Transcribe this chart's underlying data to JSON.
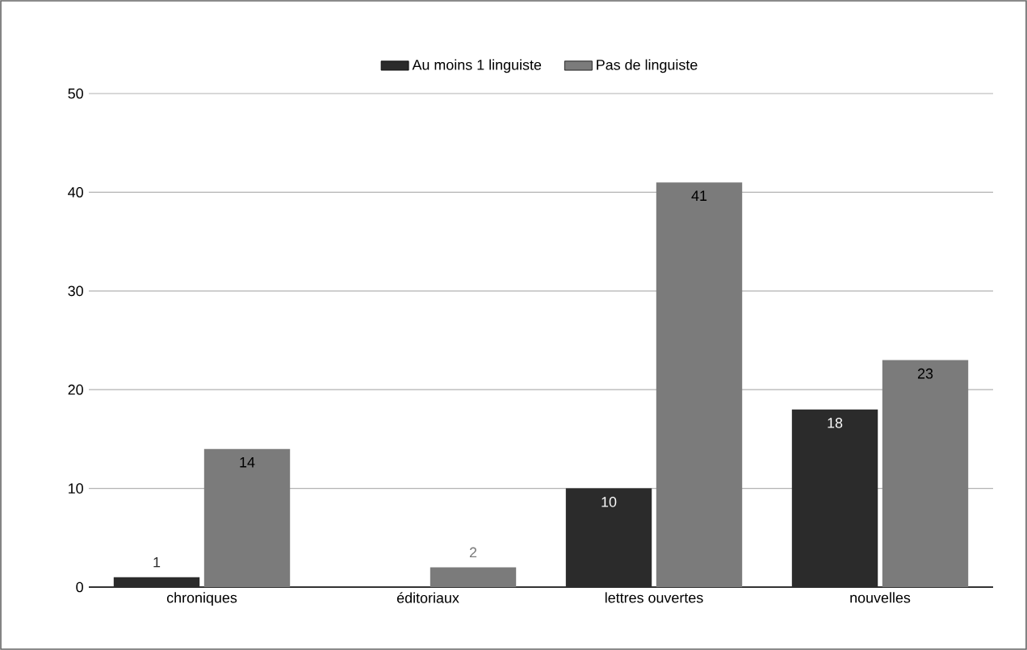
{
  "chart_data": {
    "type": "bar",
    "categories": [
      "chroniques",
      "éditoriaux",
      "lettres ouvertes",
      "nouvelles"
    ],
    "series": [
      {
        "name": "Au moins 1 linguiste",
        "color": "#2b2b2b",
        "values": [
          1,
          null,
          10,
          18
        ]
      },
      {
        "name": "Pas de linguiste",
        "color": "#7b7b7b",
        "values": [
          14,
          2,
          41,
          23
        ]
      }
    ],
    "ylim": [
      0,
      50
    ],
    "yticks": [
      0,
      10,
      20,
      30,
      40,
      50
    ],
    "grid": "y",
    "legend": "top",
    "data_labels": true
  }
}
